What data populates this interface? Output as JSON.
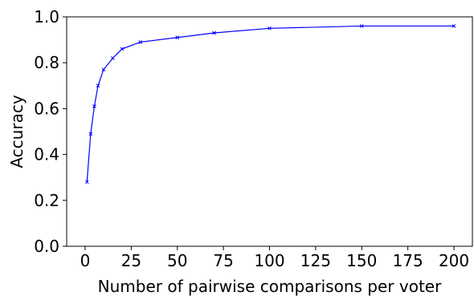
{
  "chart_data": {
    "type": "line",
    "title": "",
    "xlabel": "Number of pairwise comparisons per voter",
    "ylabel": "Accuracy",
    "xlim": [
      -10,
      210
    ],
    "ylim": [
      0,
      1
    ],
    "xticks": [
      0,
      25,
      50,
      75,
      100,
      125,
      150,
      175,
      200
    ],
    "yticks": [
      0.0,
      0.2,
      0.4,
      0.6,
      0.8,
      1.0
    ],
    "xtick_labels": [
      "0",
      "25",
      "50",
      "75",
      "100",
      "125",
      "150",
      "175",
      "200"
    ],
    "ytick_labels": [
      "0.0",
      "0.2",
      "0.4",
      "0.6",
      "0.8",
      "1.0"
    ],
    "grid": false,
    "legend": "none",
    "series": [
      {
        "color": "#0000ff",
        "marker": "x",
        "x": [
          1,
          3,
          5,
          7,
          10,
          15,
          20,
          30,
          50,
          70,
          100,
          150,
          200
        ],
        "y": [
          0.28,
          0.49,
          0.61,
          0.7,
          0.77,
          0.82,
          0.86,
          0.89,
          0.91,
          0.93,
          0.95,
          0.96,
          0.96
        ]
      }
    ]
  }
}
